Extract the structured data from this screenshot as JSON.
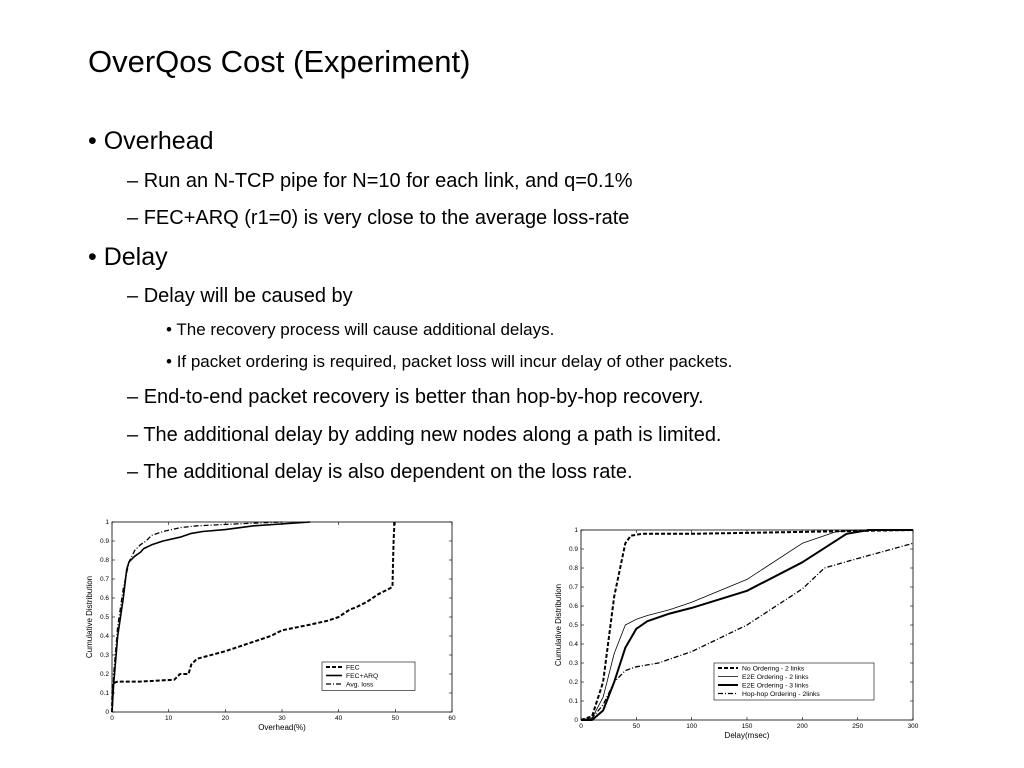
{
  "slide": {
    "title": "OverQos Cost (Experiment)",
    "bullets": [
      {
        "level": 1,
        "marker": "•",
        "text": "Overhead"
      },
      {
        "level": 2,
        "marker": "–",
        "text": "Run an N-TCP pipe for N=10 for each link, and q=0.1%"
      },
      {
        "level": 2,
        "marker": "–",
        "text": "FEC+ARQ (r1=0) is very close to the average loss-rate"
      },
      {
        "level": 1,
        "marker": "•",
        "text": "Delay"
      },
      {
        "level": 2,
        "marker": "–",
        "text": "Delay will be caused by"
      },
      {
        "level": 3,
        "marker": "•",
        "text": "The recovery process will cause additional delays."
      },
      {
        "level": 3,
        "marker": "•",
        "text": "If packet ordering is required, packet loss will incur delay of other packets."
      },
      {
        "level": 2,
        "marker": "–",
        "text": "End-to-end packet recovery is better than hop-by-hop recovery."
      },
      {
        "level": 2,
        "marker": "–",
        "text": "The additional delay by adding new nodes along a path is limited."
      },
      {
        "level": 2,
        "marker": "–",
        "text": "The additional delay is also dependent on the loss rate."
      }
    ]
  },
  "chart_data": [
    {
      "type": "line",
      "title": "",
      "xlabel": "Overhead(%)",
      "ylabel": "Cumulative Distribution",
      "xlim": [
        0,
        60
      ],
      "ylim": [
        0,
        1
      ],
      "xticks": [
        0,
        10,
        20,
        30,
        40,
        50,
        60
      ],
      "yticks": [
        0,
        0.1,
        0.2,
        0.3,
        0.4,
        0.5,
        0.6,
        0.7,
        0.8,
        0.9,
        1
      ],
      "xtick_labels": [
        "0",
        "10",
        "20",
        "30",
        "40",
        "50",
        "60"
      ],
      "ytick_labels": [
        "0",
        "0.1",
        "0.2",
        "0.3",
        "0.4",
        "0.5",
        "0.6",
        "0.7",
        "0.8",
        "0.9",
        "1"
      ],
      "grid": false,
      "legend": "bottom-right",
      "series": [
        {
          "name": "FEC",
          "dash": "4,2",
          "width": 2,
          "x": [
            0,
            0.1,
            1,
            5,
            11,
            12,
            13.5,
            14,
            15,
            20,
            25,
            28,
            30,
            35,
            38,
            40,
            42,
            43,
            45,
            47,
            49,
            49.5,
            49.6,
            49.7,
            49.8,
            49.8
          ],
          "y": [
            0,
            0.15,
            0.16,
            0.16,
            0.17,
            0.2,
            0.2,
            0.25,
            0.28,
            0.32,
            0.37,
            0.4,
            0.43,
            0.46,
            0.48,
            0.5,
            0.54,
            0.55,
            0.58,
            0.62,
            0.65,
            0.66,
            0.8,
            0.9,
            0.97,
            1
          ]
        },
        {
          "name": "FEC+ARQ",
          "dash": "",
          "width": 1.6,
          "x": [
            0,
            0.3,
            1,
            2,
            2.6,
            3,
            4,
            5,
            5.6,
            7,
            9,
            12,
            14,
            16,
            20,
            25,
            35
          ],
          "y": [
            0,
            0.15,
            0.4,
            0.6,
            0.75,
            0.79,
            0.82,
            0.84,
            0.86,
            0.88,
            0.9,
            0.92,
            0.94,
            0.95,
            0.96,
            0.98,
            1
          ]
        },
        {
          "name": "Avg. loss",
          "dash": "5,2,1,2",
          "width": 1.3,
          "x": [
            0,
            0.3,
            1,
            2,
            3,
            4,
            5,
            6,
            7,
            9,
            12,
            15,
            22,
            30
          ],
          "y": [
            0,
            0.2,
            0.45,
            0.65,
            0.79,
            0.85,
            0.88,
            0.9,
            0.93,
            0.95,
            0.97,
            0.98,
            0.99,
            1
          ]
        }
      ]
    },
    {
      "type": "line",
      "title": "",
      "xlabel": "Delay(msec)",
      "ylabel": "Cumulative Distribution",
      "xlim": [
        0,
        300
      ],
      "ylim": [
        0,
        1
      ],
      "xticks": [
        0,
        50,
        100,
        150,
        200,
        250,
        300
      ],
      "yticks": [
        0,
        0.1,
        0.2,
        0.3,
        0.4,
        0.5,
        0.6,
        0.7,
        0.8,
        0.9,
        1
      ],
      "xtick_labels": [
        "0",
        "50",
        "100",
        "150",
        "200",
        "250",
        "300"
      ],
      "ytick_labels": [
        "0",
        "0.1",
        "0.2",
        "0.3",
        "0.4",
        "0.5",
        "0.6",
        "0.7",
        "0.8",
        "0.9",
        "1"
      ],
      "grid": false,
      "legend": "bottom-right",
      "series": [
        {
          "name": "No Ordering - 2 links",
          "dash": "4,2",
          "width": 2,
          "x": [
            0,
            10,
            20,
            30,
            40,
            45,
            55,
            100,
            200,
            300
          ],
          "y": [
            0,
            0.02,
            0.2,
            0.65,
            0.93,
            0.97,
            0.98,
            0.98,
            0.99,
            1
          ]
        },
        {
          "name": "E2E Ordering - 2 links",
          "dash": "",
          "width": 0.8,
          "x": [
            0,
            10,
            20,
            30,
            40,
            50,
            60,
            80,
            100,
            150,
            200,
            230,
            250,
            300
          ],
          "y": [
            0,
            0.01,
            0.12,
            0.35,
            0.5,
            0.53,
            0.55,
            0.58,
            0.62,
            0.74,
            0.93,
            0.99,
            1,
            1
          ]
        },
        {
          "name": "E2E Ordering - 3 links",
          "dash": "",
          "width": 2,
          "x": [
            0,
            10,
            20,
            30,
            40,
            50,
            60,
            80,
            100,
            150,
            200,
            240,
            260,
            300
          ],
          "y": [
            0,
            0,
            0.05,
            0.2,
            0.38,
            0.48,
            0.52,
            0.56,
            0.59,
            0.68,
            0.83,
            0.98,
            1,
            1
          ]
        },
        {
          "name": "Hop-hop Ordering - 2links",
          "dash": "5,2,1,2",
          "width": 1.3,
          "x": [
            0,
            10,
            20,
            30,
            40,
            50,
            60,
            70,
            80,
            100,
            150,
            200,
            220,
            250,
            300
          ],
          "y": [
            0,
            0.01,
            0.08,
            0.2,
            0.26,
            0.28,
            0.29,
            0.3,
            0.32,
            0.36,
            0.5,
            0.69,
            0.8,
            0.85,
            0.93
          ]
        }
      ]
    }
  ]
}
